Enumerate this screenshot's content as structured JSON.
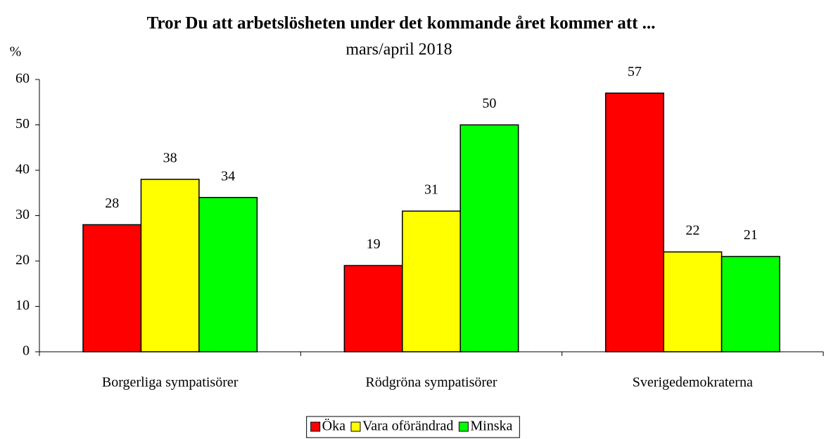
{
  "chart_data": {
    "type": "bar",
    "title": "Tror Du att arbetslösheten under det kommande året kommer att ...",
    "subtitle": "mars/april 2018",
    "ylabel": "%",
    "categories": [
      "Borgerliga sympatisörer",
      "Rödgröna sympatisörer",
      "Sverigedemokraterna"
    ],
    "series": [
      {
        "name": "Öka",
        "color": "#ff0000",
        "values": [
          28,
          19,
          57
        ]
      },
      {
        "name": "Vara oförändrad",
        "color": "#ffff00",
        "values": [
          38,
          31,
          22
        ]
      },
      {
        "name": "Minska",
        "color": "#00ff00",
        "values": [
          34,
          50,
          21
        ]
      }
    ],
    "ylim": [
      0,
      60
    ],
    "yticks": [
      0,
      10,
      20,
      30,
      40,
      50,
      60
    ],
    "legend": "bottom"
  }
}
